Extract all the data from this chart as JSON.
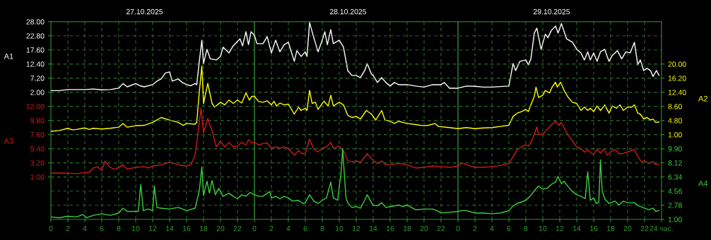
{
  "chart_data": [
    {
      "type": "line",
      "ylabel": "A1",
      "y2label": "A2",
      "annotations": [
        "27.10.2025",
        "28.10.2025",
        "29.10.2025"
      ],
      "xlim": [
        "2025-10-27T00:00",
        "2025-10-30T00:00"
      ],
      "xticks": [
        {
          "value": "2025-10-27T00:00",
          "label": "0"
        },
        {
          "value": "2025-10-27T02:00",
          "label": "2"
        },
        {
          "value": "2025-10-27T04:00",
          "label": "4"
        },
        {
          "value": "2025-10-27T06:00",
          "label": "6"
        },
        {
          "value": "2025-10-27T08:00",
          "label": "8"
        },
        {
          "value": "2025-10-27T10:00",
          "label": "10"
        },
        {
          "value": "2025-10-27T12:00",
          "label": "12"
        },
        {
          "value": "2025-10-27T14:00",
          "label": "14"
        },
        {
          "value": "2025-10-27T16:00",
          "label": "16"
        },
        {
          "value": "2025-10-27T18:00",
          "label": "18"
        },
        {
          "value": "2025-10-27T20:00",
          "label": "20"
        },
        {
          "value": "2025-10-27T22:00",
          "label": "22"
        },
        {
          "value": "2025-10-28T00:00",
          "label": "0"
        },
        {
          "value": "2025-10-28T02:00",
          "label": "2"
        },
        {
          "value": "2025-10-28T04:00",
          "label": "4"
        },
        {
          "value": "2025-10-28T06:00",
          "label": "6"
        },
        {
          "value": "2025-10-28T08:00",
          "label": "8"
        },
        {
          "value": "2025-10-28T10:00",
          "label": "10"
        },
        {
          "value": "2025-10-28T12:00",
          "label": "12"
        },
        {
          "value": "2025-10-28T14:00",
          "label": "14"
        },
        {
          "value": "2025-10-28T16:00",
          "label": "16"
        },
        {
          "value": "2025-10-28T18:00",
          "label": "18"
        },
        {
          "value": "2025-10-28T20:00",
          "label": "20"
        },
        {
          "value": "2025-10-28T22:00",
          "label": "22"
        },
        {
          "value": "2025-10-29T00:00",
          "label": "0"
        },
        {
          "value": "2025-10-29T02:00",
          "label": "2"
        },
        {
          "value": "2025-10-29T04:00",
          "label": "4"
        },
        {
          "value": "2025-10-29T06:00",
          "label": "6"
        },
        {
          "value": "2025-10-29T08:00",
          "label": "8"
        },
        {
          "value": "2025-10-29T10:00",
          "label": "10"
        },
        {
          "value": "2025-10-29T12:00",
          "label": "12"
        },
        {
          "value": "2025-10-29T14:00",
          "label": "14"
        },
        {
          "value": "2025-10-29T16:00",
          "label": "16"
        },
        {
          "value": "2025-10-29T18:00",
          "label": "18"
        },
        {
          "value": "2025-10-29T20:00",
          "label": "20"
        },
        {
          "value": "2025-10-29T22:00",
          "label": "22"
        },
        {
          "value": "2025-10-30T00:00",
          "label": "24 час."
        }
      ],
      "ylim": [
        -44.8,
        28
      ],
      "yticks": [
        {
          "value": 2,
          "label": "2.00"
        },
        {
          "value": 7.2,
          "label": "7.20"
        },
        {
          "value": 12.4,
          "label": "12.40"
        },
        {
          "value": 17.6,
          "label": "17.60"
        },
        {
          "value": 22.8,
          "label": "22.80"
        },
        {
          "value": 28,
          "label": "28.00"
        }
      ],
      "y2lim": [
        -21.8,
        31.4
      ],
      "y2ticks": [
        {
          "value": 1,
          "label": "1.00"
        },
        {
          "value": 4.8,
          "label": "4.80"
        },
        {
          "value": 8.6,
          "label": "8.60"
        },
        {
          "value": 12.4,
          "label": "12.40"
        },
        {
          "value": 16.2,
          "label": "16.20"
        },
        {
          "value": 20,
          "label": "20.00"
        }
      ],
      "grid": true,
      "series": [
        {
          "color": "#ffffff",
          "axis": "y",
          "x": [
            "2025-10-27T00:00",
            "2025-10-27T01:00",
            "2025-10-27T02:00",
            "2025-10-27T03:00",
            "2025-10-27T04:00",
            "2025-10-27T05:00",
            "2025-10-27T06:00",
            "2025-10-27T07:00",
            "2025-10-27T08:00",
            "2025-10-27T08:30",
            "2025-10-27T09:00",
            "2025-10-27T10:00",
            "2025-10-27T10:30",
            "2025-10-27T11:00",
            "2025-10-27T12:00",
            "2025-10-27T12:30",
            "2025-10-27T13:00",
            "2025-10-27T13:30",
            "2025-10-27T14:00",
            "2025-10-27T14:18",
            "2025-10-27T15:00",
            "2025-10-27T15:30",
            "2025-10-27T16:00",
            "2025-10-27T16:30",
            "2025-10-27T17:00",
            "2025-10-27T17:12",
            "2025-10-27T17:30",
            "2025-10-27T17:48",
            "2025-10-27T18:00",
            "2025-10-27T18:24",
            "2025-10-27T18:48",
            "2025-10-27T19:30",
            "2025-10-27T20:00",
            "2025-10-27T20:18",
            "2025-10-27T21:00",
            "2025-10-27T21:30",
            "2025-10-27T22:18",
            "2025-10-27T22:36",
            "2025-10-27T23:00",
            "2025-10-27T23:18",
            "2025-10-27T23:36",
            "2025-10-28T00:00",
            "2025-10-28T00:18",
            "2025-10-28T01:00",
            "2025-10-28T01:30",
            "2025-10-28T02:00",
            "2025-10-28T02:30",
            "2025-10-28T03:00",
            "2025-10-28T03:30",
            "2025-10-28T04:00",
            "2025-10-28T04:42",
            "2025-10-28T05:00",
            "2025-10-28T05:30",
            "2025-10-28T06:00",
            "2025-10-28T06:12",
            "2025-10-28T06:30",
            "2025-10-28T07:00",
            "2025-10-28T07:30",
            "2025-10-28T08:00",
            "2025-10-28T08:18",
            "2025-10-28T08:36",
            "2025-10-28T09:00",
            "2025-10-28T09:18",
            "2025-10-28T10:00",
            "2025-10-28T10:30",
            "2025-10-28T11:00",
            "2025-10-28T11:30",
            "2025-10-28T12:00",
            "2025-10-28T12:30",
            "2025-10-28T13:00",
            "2025-10-28T13:18",
            "2025-10-28T13:48",
            "2025-10-28T14:00",
            "2025-10-28T14:30",
            "2025-10-28T15:00",
            "2025-10-28T15:30",
            "2025-10-28T16:00",
            "2025-10-28T16:30",
            "2025-10-28T17:00",
            "2025-10-28T18:00",
            "2025-10-28T19:00",
            "2025-10-28T20:00",
            "2025-10-28T21:00",
            "2025-10-28T22:00",
            "2025-10-28T22:24",
            "2025-10-28T23:00",
            "2025-10-29T00:00",
            "2025-10-29T00:30",
            "2025-10-29T01:00",
            "2025-10-29T02:00",
            "2025-10-29T03:00",
            "2025-10-29T04:00",
            "2025-10-29T05:00",
            "2025-10-29T06:00",
            "2025-10-29T06:30",
            "2025-10-29T06:48",
            "2025-10-29T07:18",
            "2025-10-29T08:00",
            "2025-10-29T08:18",
            "2025-10-29T08:36",
            "2025-10-29T09:00",
            "2025-10-29T09:18",
            "2025-10-29T09:48",
            "2025-10-29T10:18",
            "2025-10-29T10:36",
            "2025-10-29T11:00",
            "2025-10-29T11:30",
            "2025-10-29T11:48",
            "2025-10-29T12:12",
            "2025-10-29T12:48",
            "2025-10-29T13:30",
            "2025-10-29T14:00",
            "2025-10-29T14:30",
            "2025-10-29T14:54",
            "2025-10-29T15:18",
            "2025-10-29T15:36",
            "2025-10-29T16:00",
            "2025-10-29T16:24",
            "2025-10-29T16:48",
            "2025-10-29T17:18",
            "2025-10-29T17:48",
            "2025-10-29T18:12",
            "2025-10-29T18:48",
            "2025-10-29T19:18",
            "2025-10-29T19:48",
            "2025-10-29T20:18",
            "2025-10-29T20:48",
            "2025-10-29T21:12",
            "2025-10-29T21:30",
            "2025-10-29T21:54",
            "2025-10-29T22:18",
            "2025-10-29T22:42",
            "2025-10-29T23:00",
            "2025-10-29T23:24",
            "2025-10-29T23:42"
          ],
          "values": [
            2.6,
            2.6,
            3.0,
            3.0,
            3.0,
            3.2,
            2.9,
            3.0,
            3.5,
            5.2,
            4.0,
            5.2,
            4.4,
            4.0,
            4.8,
            6.1,
            6.9,
            9.1,
            9.5,
            6.1,
            6.9,
            5.6,
            4.8,
            4.4,
            5.2,
            4.8,
            13.4,
            21.2,
            12.6,
            17.8,
            14.3,
            13.9,
            15.2,
            18.6,
            16.5,
            19.1,
            21.7,
            19.1,
            24.3,
            19.5,
            24.3,
            23.0,
            19.9,
            19.9,
            22.5,
            16.5,
            21.2,
            16.9,
            19.5,
            20.4,
            13.4,
            17.3,
            15.2,
            16.9,
            15.2,
            27.7,
            22.1,
            16.9,
            21.2,
            24.3,
            19.5,
            25.1,
            19.9,
            21.2,
            18.6,
            10.0,
            8.2,
            8.2,
            7.4,
            10.0,
            12.6,
            8.7,
            8.2,
            5.6,
            7.4,
            5.6,
            4.3,
            5.6,
            4.8,
            4.8,
            4.3,
            3.9,
            4.8,
            4.8,
            5.6,
            3.5,
            3.5,
            3.9,
            4.3,
            4.2,
            3.9,
            3.9,
            4.1,
            4.3,
            12.6,
            10.0,
            13.4,
            13.9,
            12.1,
            14.3,
            23.8,
            25.6,
            17.8,
            23.4,
            22.1,
            24.7,
            26.4,
            23.8,
            27.3,
            21.7,
            20.4,
            17.8,
            16.5,
            13.9,
            16.9,
            13.9,
            16.5,
            13.4,
            16.9,
            17.8,
            13.4,
            15.6,
            17.3,
            14.3,
            16.9,
            16.5,
            20.4,
            12.1,
            13.9,
            10.0,
            10.8,
            10.0,
            7.8,
            10.0,
            8.2
          ]
        },
        {
          "color": "#ffff00",
          "axis": "y2",
          "x": [
            "2025-10-27T00:00",
            "2025-10-27T01:00",
            "2025-10-27T02:00",
            "2025-10-27T02:30",
            "2025-10-27T03:00",
            "2025-10-27T04:00",
            "2025-10-27T04:30",
            "2025-10-27T05:00",
            "2025-10-27T06:00",
            "2025-10-27T07:00",
            "2025-10-27T08:00",
            "2025-10-27T08:30",
            "2025-10-27T09:00",
            "2025-10-27T10:00",
            "2025-10-27T11:00",
            "2025-10-27T12:00",
            "2025-10-27T13:00",
            "2025-10-27T14:00",
            "2025-10-27T15:00",
            "2025-10-27T15:36",
            "2025-10-27T16:00",
            "2025-10-27T17:00",
            "2025-10-27T17:12",
            "2025-10-27T17:30",
            "2025-10-27T17:48",
            "2025-10-27T18:00",
            "2025-10-27T18:30",
            "2025-10-27T19:00",
            "2025-10-27T19:18",
            "2025-10-27T20:00",
            "2025-10-27T20:30",
            "2025-10-27T21:00",
            "2025-10-27T21:30",
            "2025-10-27T22:00",
            "2025-10-27T22:30",
            "2025-10-27T23:00",
            "2025-10-27T23:24",
            "2025-10-27T23:42",
            "2025-10-28T00:00",
            "2025-10-28T00:30",
            "2025-10-28T01:00",
            "2025-10-28T01:30",
            "2025-10-28T02:00",
            "2025-10-28T02:18",
            "2025-10-28T02:36",
            "2025-10-28T03:00",
            "2025-10-28T03:30",
            "2025-10-28T04:00",
            "2025-10-28T04:42",
            "2025-10-28T05:12",
            "2025-10-28T05:30",
            "2025-10-28T06:00",
            "2025-10-28T06:12",
            "2025-10-28T06:30",
            "2025-10-28T06:48",
            "2025-10-28T07:12",
            "2025-10-28T07:30",
            "2025-10-28T08:12",
            "2025-10-28T08:42",
            "2025-10-28T09:00",
            "2025-10-28T09:18",
            "2025-10-28T10:00",
            "2025-10-28T10:30",
            "2025-10-28T11:00",
            "2025-10-28T11:30",
            "2025-10-28T12:00",
            "2025-10-28T12:30",
            "2025-10-28T13:12",
            "2025-10-28T13:48",
            "2025-10-28T14:18",
            "2025-10-28T15:00",
            "2025-10-28T15:24",
            "2025-10-28T16:00",
            "2025-10-28T16:30",
            "2025-10-28T17:00",
            "2025-10-28T17:30",
            "2025-10-28T18:00",
            "2025-10-28T19:00",
            "2025-10-28T20:00",
            "2025-10-28T20:30",
            "2025-10-28T21:18",
            "2025-10-28T21:42",
            "2025-10-28T23:00",
            "2025-10-29T00:00",
            "2025-10-29T01:00",
            "2025-10-29T02:00",
            "2025-10-29T03:00",
            "2025-10-29T04:00",
            "2025-10-29T05:00",
            "2025-10-29T06:00",
            "2025-10-29T06:30",
            "2025-10-29T07:00",
            "2025-10-29T07:30",
            "2025-10-29T08:00",
            "2025-10-29T08:18",
            "2025-10-29T08:36",
            "2025-10-29T09:00",
            "2025-10-29T09:12",
            "2025-10-29T09:30",
            "2025-10-29T10:00",
            "2025-10-29T10:18",
            "2025-10-29T10:48",
            "2025-10-29T11:06",
            "2025-10-29T11:30",
            "2025-10-29T11:42",
            "2025-10-29T12:06",
            "2025-10-29T12:36",
            "2025-10-29T13:00",
            "2025-10-29T13:30",
            "2025-10-29T14:00",
            "2025-10-29T14:30",
            "2025-10-29T14:54",
            "2025-10-29T15:18",
            "2025-10-29T15:36",
            "2025-10-29T16:00",
            "2025-10-29T16:24",
            "2025-10-29T16:48",
            "2025-10-29T17:18",
            "2025-10-29T17:48",
            "2025-10-29T18:12",
            "2025-10-29T18:42",
            "2025-10-29T19:06",
            "2025-10-29T19:30",
            "2025-10-29T20:00",
            "2025-10-29T20:30",
            "2025-10-29T20:48",
            "2025-10-29T21:12",
            "2025-10-29T21:30",
            "2025-10-29T21:54",
            "2025-10-29T22:18",
            "2025-10-29T22:42",
            "2025-10-29T23:00",
            "2025-10-29T23:18",
            "2025-10-29T23:42"
          ],
          "values": [
            1.9,
            2.1,
            2.7,
            2.3,
            2.4,
            2.8,
            2.4,
            2.7,
            2.5,
            2.7,
            3.0,
            4.0,
            3.0,
            3.4,
            3.5,
            4.3,
            5.6,
            4.9,
            4.3,
            3.5,
            4.0,
            3.8,
            4.3,
            12.5,
            19.5,
            9.4,
            14.8,
            9.4,
            8.4,
            9.7,
            9.0,
            10.3,
            9.4,
            10.3,
            9.5,
            12.2,
            10.3,
            11.3,
            11.3,
            9.9,
            9.7,
            10.1,
            9.0,
            10.0,
            8.7,
            9.5,
            9.0,
            9.2,
            6.5,
            8.4,
            7.5,
            8.1,
            7.5,
            12.9,
            9.4,
            9.7,
            7.8,
            10.0,
            8.7,
            11.6,
            8.7,
            9.7,
            9.0,
            6.2,
            5.6,
            5.9,
            5.2,
            7.5,
            6.5,
            4.9,
            7.5,
            4.9,
            4.6,
            4.0,
            4.6,
            4.3,
            4.0,
            3.7,
            3.4,
            3.5,
            4.0,
            3.2,
            2.9,
            2.6,
            2.9,
            2.6,
            2.8,
            2.9,
            3.2,
            3.5,
            5.9,
            6.8,
            7.2,
            7.8,
            7.2,
            9.0,
            11.3,
            13.8,
            11.0,
            11.6,
            12.9,
            12.2,
            13.8,
            15.1,
            13.8,
            15.1,
            12.5,
            11.0,
            9.7,
            9.4,
            7.5,
            8.4,
            7.5,
            8.1,
            7.2,
            8.7,
            7.5,
            9.0,
            6.8,
            8.7,
            8.1,
            9.0,
            7.5,
            8.4,
            8.4,
            9.0,
            6.8,
            6.5,
            5.2,
            5.6,
            4.9,
            5.2,
            4.3,
            4.4
          ]
        }
      ]
    },
    {
      "type": "line",
      "ylabel": "A3",
      "y2label": "A4",
      "tick_labels": "y",
      "xlim": [
        "2025-10-27T00:00",
        "2025-10-30T00:00"
      ],
      "ylim": [
        -5.6,
        25.2
      ],
      "yticks": [
        {
          "value": 1,
          "label": "1.00"
        },
        {
          "value": 3.2,
          "label": "3.20"
        },
        {
          "value": 5.4,
          "label": "5.40"
        },
        {
          "value": 7.6,
          "label": "7.60"
        },
        {
          "value": 9.8,
          "label": "9.80"
        },
        {
          "value": 12,
          "label": "12.00"
        }
      ],
      "y2lim": [
        1,
        25.92
      ],
      "y2ticks": [
        {
          "value": 1,
          "label": "1.00"
        },
        {
          "value": 2.78,
          "label": "2.78"
        },
        {
          "value": 4.56,
          "label": "4.56"
        },
        {
          "value": 6.34,
          "label": "6.34"
        },
        {
          "value": 8.12,
          "label": "8.12"
        },
        {
          "value": 9.9,
          "label": "9.90"
        }
      ],
      "grid": "y",
      "series": [
        {
          "color": "#d01818",
          "axis": "y",
          "x": [
            "2025-10-27T00:00",
            "2025-10-27T01:00",
            "2025-10-27T02:00",
            "2025-10-27T03:00",
            "2025-10-27T04:00",
            "2025-10-27T04:30",
            "2025-10-27T05:00",
            "2025-10-27T05:30",
            "2025-10-27T06:00",
            "2025-10-27T06:24",
            "2025-10-27T07:00",
            "2025-10-27T07:30",
            "2025-10-27T08:00",
            "2025-10-27T08:30",
            "2025-10-27T09:00",
            "2025-10-27T10:00",
            "2025-10-27T11:00",
            "2025-10-27T11:30",
            "2025-10-27T12:00",
            "2025-10-27T13:00",
            "2025-10-27T14:00",
            "2025-10-27T15:00",
            "2025-10-27T16:00",
            "2025-10-27T16:30",
            "2025-10-27T17:00",
            "2025-10-27T17:18",
            "2025-10-27T17:42",
            "2025-10-27T18:00",
            "2025-10-27T18:30",
            "2025-10-27T19:00",
            "2025-10-27T19:30",
            "2025-10-27T20:00",
            "2025-10-27T20:30",
            "2025-10-27T21:00",
            "2025-10-27T21:30",
            "2025-10-27T22:00",
            "2025-10-27T22:30",
            "2025-10-27T23:00",
            "2025-10-27T23:18",
            "2025-10-27T23:42",
            "2025-10-28T00:00",
            "2025-10-28T00:30",
            "2025-10-28T01:00",
            "2025-10-28T01:30",
            "2025-10-28T02:00",
            "2025-10-28T02:30",
            "2025-10-28T03:00",
            "2025-10-28T03:30",
            "2025-10-28T04:00",
            "2025-10-28T04:42",
            "2025-10-28T05:12",
            "2025-10-28T05:42",
            "2025-10-28T06:00",
            "2025-10-28T06:30",
            "2025-10-28T07:00",
            "2025-10-28T07:30",
            "2025-10-28T08:00",
            "2025-10-28T08:30",
            "2025-10-28T09:00",
            "2025-10-28T09:18",
            "2025-10-28T10:00",
            "2025-10-28T10:30",
            "2025-10-28T11:00",
            "2025-10-28T11:30",
            "2025-10-28T12:00",
            "2025-10-28T12:30",
            "2025-10-28T13:18",
            "2025-10-28T14:00",
            "2025-10-28T14:30",
            "2025-10-28T15:00",
            "2025-10-28T15:30",
            "2025-10-28T16:00",
            "2025-10-28T17:00",
            "2025-10-28T18:00",
            "2025-10-28T19:00",
            "2025-10-28T20:00",
            "2025-10-28T21:00",
            "2025-10-28T22:00",
            "2025-10-28T23:00",
            "2025-10-29T00:00",
            "2025-10-29T00:30",
            "2025-10-29T01:00",
            "2025-10-29T02:00",
            "2025-10-29T03:00",
            "2025-10-29T04:00",
            "2025-10-29T05:00",
            "2025-10-29T06:00",
            "2025-10-29T06:30",
            "2025-10-29T07:00",
            "2025-10-29T07:30",
            "2025-10-29T08:00",
            "2025-10-29T08:18",
            "2025-10-29T08:48",
            "2025-10-29T09:18",
            "2025-10-29T09:30",
            "2025-10-29T10:00",
            "2025-10-29T10:30",
            "2025-10-29T11:00",
            "2025-10-29T11:30",
            "2025-10-29T11:54",
            "2025-10-29T12:12",
            "2025-10-29T12:36",
            "2025-10-29T13:00",
            "2025-10-29T13:30",
            "2025-10-29T14:00",
            "2025-10-29T14:30",
            "2025-10-29T14:54",
            "2025-10-29T15:18",
            "2025-10-29T15:42",
            "2025-10-29T16:00",
            "2025-10-29T16:24",
            "2025-10-29T16:48",
            "2025-10-29T17:12",
            "2025-10-29T17:36",
            "2025-10-29T18:00",
            "2025-10-29T18:30",
            "2025-10-29T19:00",
            "2025-10-29T19:30",
            "2025-10-29T20:00",
            "2025-10-29T20:48",
            "2025-10-29T21:12",
            "2025-10-29T21:36",
            "2025-10-29T22:00",
            "2025-10-29T22:30",
            "2025-10-29T23:00",
            "2025-10-29T23:18",
            "2025-10-29T23:42"
          ],
          "values": [
            1.6,
            1.6,
            1.6,
            1.5,
            1.7,
            1.7,
            2.4,
            2.6,
            2.0,
            3.5,
            2.5,
            2.2,
            2.5,
            2.9,
            2.2,
            2.5,
            2.6,
            2.4,
            2.7,
            2.9,
            3.3,
            2.9,
            2.7,
            2.9,
            4.4,
            7.3,
            11.7,
            7.9,
            10.1,
            8.2,
            5.7,
            6.6,
            5.7,
            6.4,
            5.7,
            5.8,
            6.4,
            6.0,
            6.8,
            6.3,
            6.4,
            6.0,
            6.2,
            6.3,
            5.5,
            5.7,
            5.5,
            5.7,
            5.4,
            4.4,
            5.1,
            4.6,
            4.7,
            6.9,
            5.3,
            4.9,
            5.5,
            5.7,
            6.4,
            5.5,
            5.8,
            5.1,
            3.5,
            3.4,
            3.5,
            3.3,
            4.6,
            3.6,
            3.1,
            3.5,
            2.9,
            2.9,
            3.1,
            2.9,
            2.4,
            2.5,
            2.7,
            2.6,
            2.5,
            2.7,
            3.2,
            2.9,
            2.5,
            2.5,
            2.6,
            2.8,
            3.1,
            4.2,
            5.3,
            5.7,
            6.0,
            5.8,
            6.9,
            8.8,
            7.6,
            7.7,
            8.4,
            9.1,
            9.7,
            9.0,
            9.5,
            8.4,
            7.5,
            6.6,
            5.7,
            5.4,
            4.9,
            5.2,
            4.7,
            4.6,
            5.3,
            4.7,
            5.4,
            4.4,
            4.9,
            5.3,
            4.6,
            4.7,
            4.9,
            5.3,
            4.2,
            3.4,
            3.5,
            3.1,
            3.4,
            2.9,
            3.0
          ]
        },
        {
          "color": "#3ccf3c",
          "axis": "y2",
          "x": [
            "2025-10-27T00:00",
            "2025-10-27T01:00",
            "2025-10-27T02:00",
            "2025-10-27T03:00",
            "2025-10-27T03:48",
            "2025-10-27T04:12",
            "2025-10-27T05:00",
            "2025-10-27T06:00",
            "2025-10-27T07:00",
            "2025-10-27T08:00",
            "2025-10-27T08:30",
            "2025-10-27T09:00",
            "2025-10-27T10:00",
            "2025-10-27T10:18",
            "2025-10-27T10:36",
            "2025-10-27T10:54",
            "2025-10-27T11:30",
            "2025-10-27T12:00",
            "2025-10-27T12:12",
            "2025-10-27T12:30",
            "2025-10-27T13:00",
            "2025-10-27T14:00",
            "2025-10-27T15:00",
            "2025-10-27T16:00",
            "2025-10-27T17:00",
            "2025-10-27T17:30",
            "2025-10-27T17:48",
            "2025-10-27T18:00",
            "2025-10-27T18:24",
            "2025-10-27T18:42",
            "2025-10-27T19:00",
            "2025-10-27T19:24",
            "2025-10-27T19:48",
            "2025-10-27T20:18",
            "2025-10-27T21:00",
            "2025-10-27T21:30",
            "2025-10-27T22:00",
            "2025-10-27T22:30",
            "2025-10-27T23:00",
            "2025-10-27T23:30",
            "2025-10-28T00:00",
            "2025-10-28T00:30",
            "2025-10-28T01:00",
            "2025-10-28T01:48",
            "2025-10-28T02:00",
            "2025-10-28T02:30",
            "2025-10-28T03:00",
            "2025-10-28T03:30",
            "2025-10-28T04:00",
            "2025-10-28T04:30",
            "2025-10-28T05:12",
            "2025-10-28T05:42",
            "2025-10-28T06:00",
            "2025-10-28T06:30",
            "2025-10-28T07:00",
            "2025-10-28T07:30",
            "2025-10-28T08:00",
            "2025-10-28T08:30",
            "2025-10-28T09:00",
            "2025-10-28T09:18",
            "2025-10-28T09:48",
            "2025-10-28T10:12",
            "2025-10-28T10:24",
            "2025-10-28T10:36",
            "2025-10-28T10:48",
            "2025-10-28T11:00",
            "2025-10-28T11:30",
            "2025-10-28T12:00",
            "2025-10-28T12:30",
            "2025-10-28T13:00",
            "2025-10-28T13:18",
            "2025-10-28T13:48",
            "2025-10-28T14:00",
            "2025-10-28T14:30",
            "2025-10-28T15:00",
            "2025-10-28T15:30",
            "2025-10-28T16:00",
            "2025-10-28T17:00",
            "2025-10-28T17:30",
            "2025-10-28T18:00",
            "2025-10-28T19:00",
            "2025-10-28T20:00",
            "2025-10-28T21:00",
            "2025-10-28T21:30",
            "2025-10-28T22:00",
            "2025-10-28T23:00",
            "2025-10-29T00:00",
            "2025-10-29T00:30",
            "2025-10-29T01:00",
            "2025-10-29T02:00",
            "2025-10-29T03:00",
            "2025-10-29T04:00",
            "2025-10-29T05:00",
            "2025-10-29T06:00",
            "2025-10-29T06:30",
            "2025-10-29T07:00",
            "2025-10-29T08:00",
            "2025-10-29T08:30",
            "2025-10-29T09:00",
            "2025-10-29T09:30",
            "2025-10-29T10:00",
            "2025-10-29T10:30",
            "2025-10-29T11:00",
            "2025-10-29T11:30",
            "2025-10-29T11:48",
            "2025-10-29T12:12",
            "2025-10-29T12:30",
            "2025-10-29T13:00",
            "2025-10-29T13:30",
            "2025-10-29T14:00",
            "2025-10-29T14:30",
            "2025-10-29T15:00",
            "2025-10-29T15:18",
            "2025-10-29T15:36",
            "2025-10-29T16:00",
            "2025-10-29T16:18",
            "2025-10-29T16:36",
            "2025-10-29T16:48",
            "2025-10-29T17:00",
            "2025-10-29T17:18",
            "2025-10-29T17:48",
            "2025-10-29T18:30",
            "2025-10-29T19:00",
            "2025-10-29T19:30",
            "2025-10-29T20:00",
            "2025-10-29T20:48",
            "2025-10-29T21:18",
            "2025-10-29T22:00",
            "2025-10-29T22:30",
            "2025-10-29T23:00",
            "2025-10-29T23:18",
            "2025-10-29T23:42"
          ],
          "values": [
            1.3,
            1.2,
            1.4,
            1.3,
            1.6,
            1.2,
            1.5,
            1.7,
            1.5,
            1.8,
            2.4,
            2.0,
            2.0,
            2.0,
            5.4,
            2.1,
            2.3,
            2.1,
            5.2,
            2.5,
            2.4,
            2.3,
            2.5,
            2.1,
            2.4,
            4.6,
            7.6,
            4.0,
            5.8,
            4.3,
            5.9,
            4.1,
            4.9,
            3.9,
            4.3,
            3.9,
            3.6,
            4.1,
            3.9,
            4.4,
            4.1,
            3.9,
            3.9,
            4.5,
            3.7,
            3.9,
            3.6,
            3.9,
            3.7,
            3.3,
            3.4,
            3.0,
            3.1,
            4.1,
            3.3,
            3.0,
            3.4,
            3.7,
            5.7,
            3.7,
            3.4,
            6.7,
            9.9,
            6.7,
            3.7,
            3.1,
            2.5,
            2.6,
            2.4,
            3.4,
            4.1,
            3.1,
            2.8,
            2.7,
            3.1,
            2.5,
            2.6,
            2.8,
            2.6,
            2.8,
            2.2,
            2.3,
            2.3,
            2.1,
            1.8,
            1.9,
            2.0,
            2.1,
            2.1,
            1.8,
            1.8,
            1.7,
            1.8,
            2.1,
            2.7,
            3.0,
            3.4,
            3.9,
            4.6,
            5.2,
            4.8,
            4.9,
            5.4,
            5.7,
            6.4,
            5.5,
            5.8,
            5.1,
            4.5,
            4.1,
            3.9,
            3.6,
            7.0,
            3.4,
            3.7,
            3.0,
            3.1,
            8.5,
            4.6,
            3.6,
            3.0,
            3.3,
            2.8,
            3.3,
            3.1,
            3.1,
            2.7,
            2.4,
            2.2,
            2.4,
            2.0,
            2.1
          ]
        }
      ]
    }
  ]
}
